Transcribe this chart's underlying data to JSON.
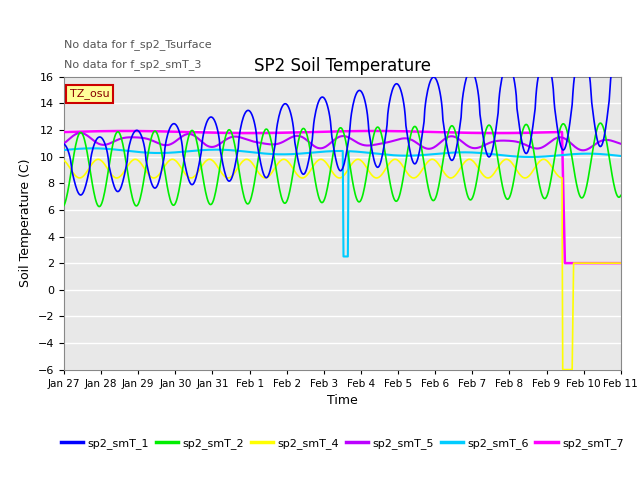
{
  "title": "SP2 Soil Temperature",
  "ylabel": "Soil Temperature (C)",
  "xlabel": "Time",
  "annotation_lines": [
    "No data for f_sp2_Tsurface",
    "No data for f_sp2_smT_3"
  ],
  "tz_label": "TZ_osu",
  "ylim": [
    -6,
    16
  ],
  "yticks": [
    -6,
    -4,
    -2,
    0,
    2,
    4,
    6,
    8,
    10,
    12,
    14,
    16
  ],
  "x_labels": [
    "Jan 27",
    "Jan 28",
    "Jan 29",
    "Jan 30",
    "Jan 31",
    "Feb 1",
    "Feb 2",
    "Feb 3",
    "Feb 4",
    "Feb 5",
    "Feb 6",
    "Feb 7",
    "Feb 8",
    "Feb 9",
    "Feb 10",
    "Feb 11"
  ],
  "fig_bg_color": "#ffffff",
  "plot_bg_color": "#e8e8e8",
  "grid_color": "#ffffff",
  "colors": {
    "sp2_smT_1": "#0000ff",
    "sp2_smT_2": "#00ee00",
    "sp2_smT_4": "#ffff00",
    "sp2_smT_5": "#bb00ff",
    "sp2_smT_6": "#00ccff",
    "sp2_smT_7": "#ff00ff"
  }
}
